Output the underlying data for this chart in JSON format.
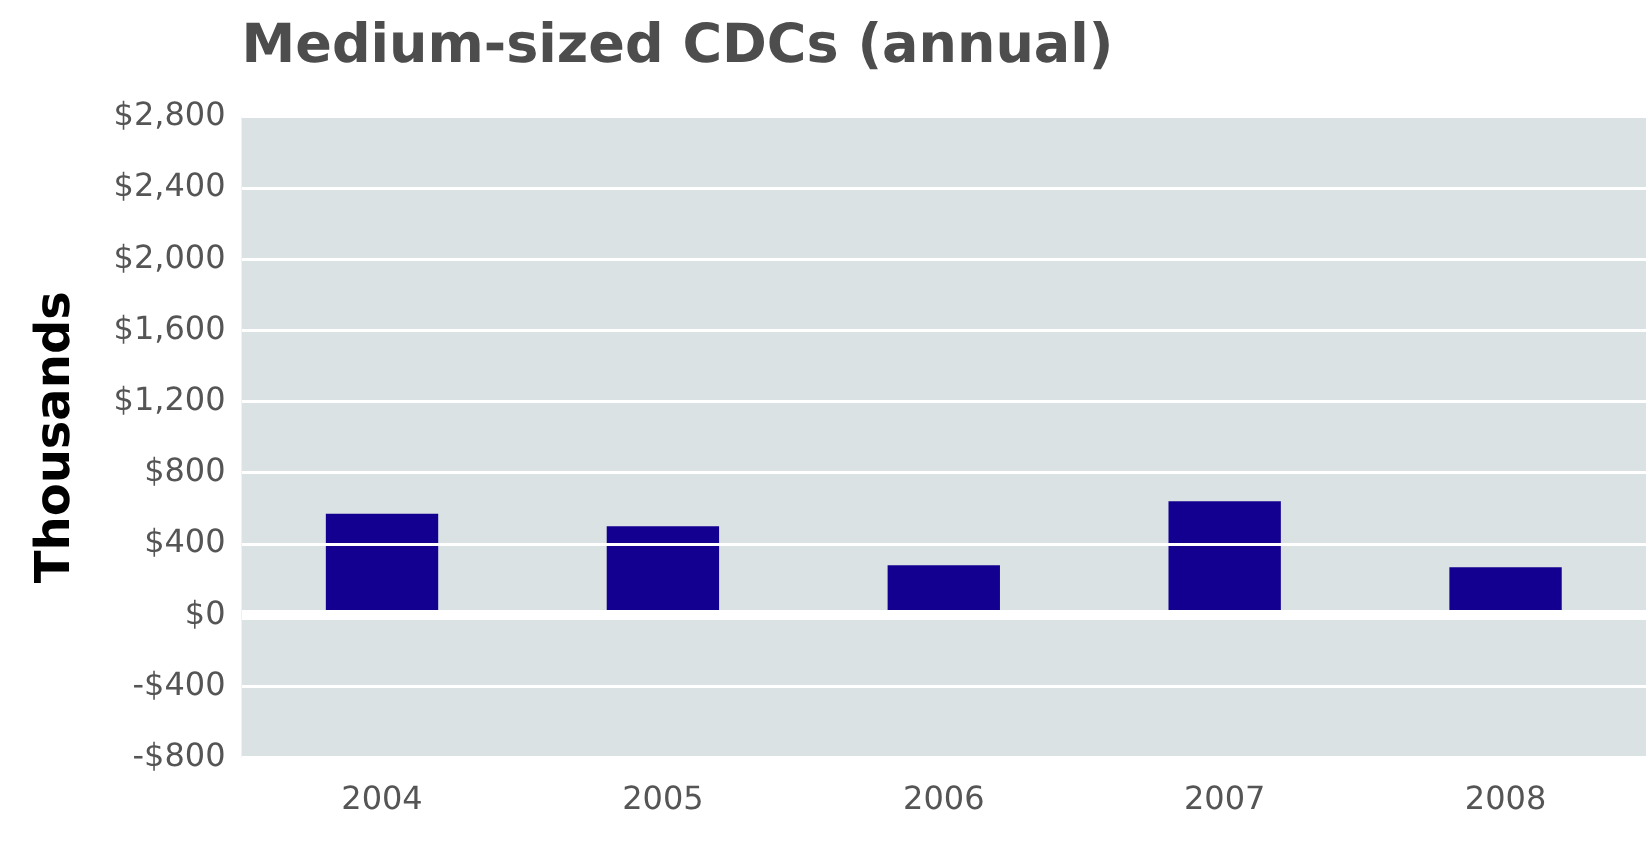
{
  "chart_data": {
    "type": "bar",
    "title": "Medium-sized CDCs (annual)",
    "ylabel": "Thousands",
    "categories": [
      "2004",
      "2005",
      "2006",
      "2007",
      "2008"
    ],
    "values": [
      570,
      500,
      280,
      640,
      270
    ],
    "color": "#140090",
    "ylim": [
      -800,
      2800
    ],
    "yticks": [
      {
        "value": -800,
        "label": "-$800"
      },
      {
        "value": -400,
        "label": "-$400"
      },
      {
        "value": 0,
        "label": "$0"
      },
      {
        "value": 400,
        "label": "$400"
      },
      {
        "value": 800,
        "label": "$800"
      },
      {
        "value": 1200,
        "label": "$1,200"
      },
      {
        "value": 1600,
        "label": "$1,600"
      },
      {
        "value": 2000,
        "label": "$2,000"
      },
      {
        "value": 2400,
        "label": "$2,400"
      },
      {
        "value": 2800,
        "label": "$2,800"
      }
    ],
    "grid": "y"
  }
}
